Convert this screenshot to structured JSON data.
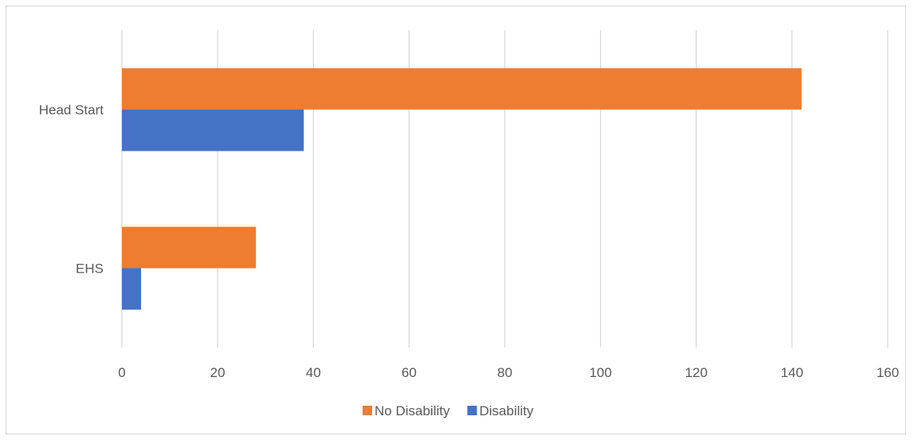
{
  "chart_data": {
    "type": "bar",
    "orientation": "horizontal",
    "categories": [
      "EHS",
      "Head Start"
    ],
    "series": [
      {
        "name": "No Disability",
        "color": "#ED7D31",
        "values": [
          28,
          142
        ]
      },
      {
        "name": "Disability",
        "color": "#4472C4",
        "values": [
          4,
          38
        ]
      }
    ],
    "xlim": [
      0,
      160
    ],
    "xticks": [
      0,
      20,
      40,
      60,
      80,
      100,
      120,
      140,
      160
    ],
    "grid": true,
    "legend_position": "bottom"
  }
}
